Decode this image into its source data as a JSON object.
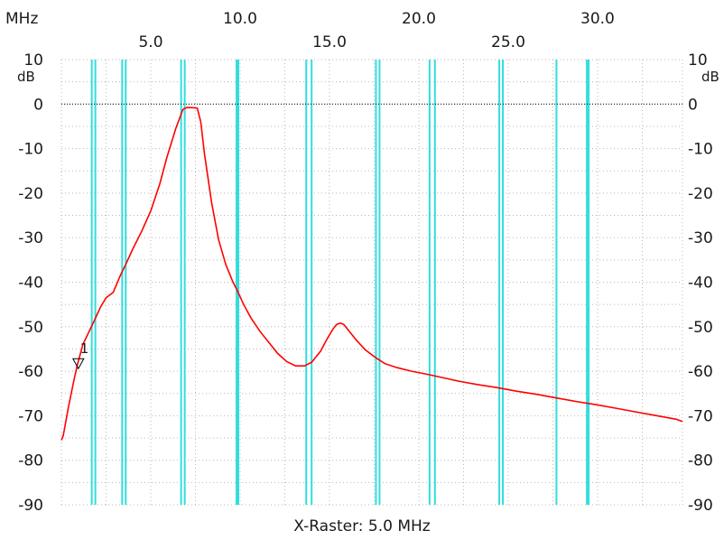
{
  "chart_data": {
    "type": "line",
    "unit_x": "MHz",
    "unit_y": "dB",
    "footer": "X-Raster: 5.0 MHz",
    "xlim": [
      0.0,
      34.75
    ],
    "ylim": [
      -90,
      10
    ],
    "x_ticks_top": [
      "10.0",
      "20.0",
      "30.0"
    ],
    "x_ticks_bottom": [
      "5.0",
      "15.0",
      "25.0"
    ],
    "y_ticks": [
      "10",
      "0",
      "-10",
      "-20",
      "-30",
      "-40",
      "-50",
      "-60",
      "-70",
      "-80",
      "-90"
    ],
    "grid": true,
    "reference_line_y": 0,
    "marker": {
      "label": "1",
      "x": 0.95,
      "y": -58
    },
    "colors": {
      "trace": "#ff0000",
      "cyan_lines": "#33dddd",
      "grid": "#b8b8b8",
      "ref": "#000000"
    },
    "cyan_lines_x": [
      1.7,
      1.9,
      3.4,
      3.6,
      6.7,
      6.9,
      9.8,
      9.9,
      13.7,
      14.0,
      17.6,
      17.8,
      20.6,
      20.9,
      24.5,
      24.7,
      27.7,
      29.4,
      29.5
    ],
    "series": [
      {
        "color": "#ff0000",
        "x": [
          0.0,
          0.1,
          0.4,
          0.7,
          0.9,
          1.2,
          1.5,
          1.8,
          2.2,
          2.5,
          2.9,
          3.3,
          3.6,
          4.0,
          4.5,
          5.0,
          5.5,
          5.9,
          6.4,
          6.8,
          7.0,
          7.3,
          7.6,
          7.8,
          8.0,
          8.4,
          8.8,
          9.2,
          9.6,
          9.8,
          10.2,
          10.6,
          11.1,
          11.6,
          12.1,
          12.6,
          13.1,
          13.6,
          14.0,
          14.5,
          14.9,
          15.2,
          15.4,
          15.6,
          15.8,
          16.0,
          16.5,
          17.0,
          17.6,
          18.1,
          18.8,
          19.6,
          20.5,
          21.4,
          22.3,
          23.3,
          24.4,
          25.5,
          26.6,
          27.7,
          28.8,
          29.9,
          31.0,
          32.1,
          33.2,
          34.4,
          34.75
        ],
        "y": [
          -75.5,
          -74.5,
          -68,
          -62,
          -58.5,
          -54,
          -51.5,
          -49,
          -45.5,
          -43.5,
          -42.3,
          -38.5,
          -36,
          -32.5,
          -28.5,
          -24,
          -18,
          -12,
          -5.5,
          -1.2,
          -0.8,
          -0.8,
          -0.9,
          -4,
          -11,
          -22,
          -30.5,
          -36,
          -40,
          -41.5,
          -45,
          -48,
          -51,
          -53.5,
          -56,
          -57.8,
          -58.8,
          -58.8,
          -58,
          -55.5,
          -52.5,
          -50.5,
          -49.5,
          -49.2,
          -49.5,
          -50.5,
          -53,
          -55.2,
          -57,
          -58.3,
          -59.2,
          -60,
          -60.7,
          -61.5,
          -62.3,
          -63,
          -63.7,
          -64.5,
          -65.2,
          -66,
          -66.8,
          -67.5,
          -68.3,
          -69.1,
          -69.9,
          -70.8,
          -71.3
        ]
      }
    ]
  }
}
